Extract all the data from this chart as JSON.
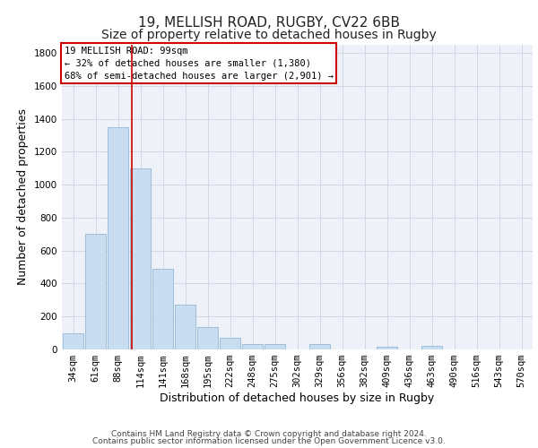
{
  "title1": "19, MELLISH ROAD, RUGBY, CV22 6BB",
  "title2": "Size of property relative to detached houses in Rugby",
  "xlabel": "Distribution of detached houses by size in Rugby",
  "ylabel": "Number of detached properties",
  "footer1": "Contains HM Land Registry data © Crown copyright and database right 2024.",
  "footer2": "Contains public sector information licensed under the Open Government Licence v3.0.",
  "categories": [
    "34sqm",
    "61sqm",
    "88sqm",
    "114sqm",
    "141sqm",
    "168sqm",
    "195sqm",
    "222sqm",
    "248sqm",
    "275sqm",
    "302sqm",
    "329sqm",
    "356sqm",
    "382sqm",
    "409sqm",
    "436sqm",
    "463sqm",
    "490sqm",
    "516sqm",
    "543sqm",
    "570sqm"
  ],
  "values": [
    100,
    700,
    1350,
    1100,
    490,
    270,
    135,
    70,
    35,
    35,
    0,
    35,
    0,
    0,
    15,
    0,
    20,
    0,
    0,
    0,
    0
  ],
  "bar_color": "#c8ddf0",
  "bar_edge_color": "#93b8d8",
  "red_line_x": 2.62,
  "annotation_title": "19 MELLISH ROAD: 99sqm",
  "annotation_line1": "← 32% of detached houses are smaller (1,380)",
  "annotation_line2": "68% of semi-detached houses are larger (2,901) →",
  "annotation_box_color": "#ffffff",
  "annotation_edge_color": "#cc0000",
  "ylim": [
    0,
    1850
  ],
  "yticks": [
    0,
    200,
    400,
    600,
    800,
    1000,
    1200,
    1400,
    1600,
    1800
  ],
  "grid_color": "#d0d8e8",
  "bg_color": "#eef2f8",
  "title1_fontsize": 11,
  "title2_fontsize": 10,
  "xlabel_fontsize": 9,
  "ylabel_fontsize": 9,
  "tick_fontsize": 7.5,
  "footer_fontsize": 6.5,
  "annot_fontsize": 7.5
}
